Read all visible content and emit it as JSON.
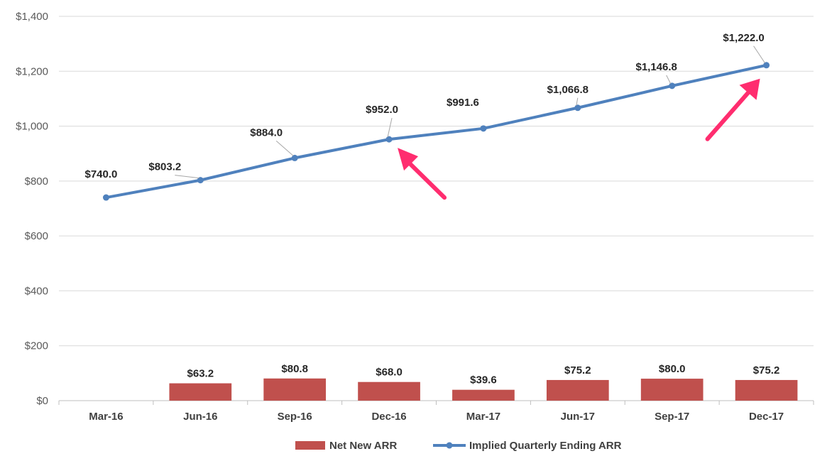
{
  "chart_data": {
    "type": "bar",
    "categories": [
      "Mar-16",
      "Jun-16",
      "Sep-16",
      "Dec-16",
      "Mar-17",
      "Jun-17",
      "Sep-17",
      "Dec-17"
    ],
    "series": [
      {
        "name": "Net New ARR",
        "type": "bar",
        "color": "#C0504D",
        "values": [
          null,
          63.2,
          80.8,
          68.0,
          39.6,
          75.2,
          80.0,
          75.2
        ],
        "labels": [
          "",
          "$63.2",
          "$80.8",
          "$68.0",
          "$39.6",
          "$75.2",
          "$80.0",
          "$75.2"
        ]
      },
      {
        "name": "Implied Quarterly Ending ARR",
        "type": "line",
        "color": "#4F81BD",
        "values": [
          740.0,
          803.2,
          884.0,
          952.0,
          991.6,
          1066.8,
          1146.8,
          1222.0
        ],
        "labels": [
          "$740.0",
          "$803.2",
          "$884.0",
          "$952.0",
          "$991.6",
          "$1,066.8",
          "$1,146.8",
          "$1,222.0"
        ]
      }
    ],
    "yticks": [
      0,
      200,
      400,
      600,
      800,
      1000,
      1200,
      1400
    ],
    "ytick_labels": [
      "$0",
      "$200",
      "$400",
      "$600",
      "$800",
      "$1,000",
      "$1,200",
      "$1,400"
    ],
    "ylim": [
      0,
      1400
    ],
    "grid": true,
    "legend": "bottom",
    "annotations": [
      {
        "kind": "arrow",
        "color": "#FF2D6F",
        "points_to": "Dec-16"
      },
      {
        "kind": "arrow",
        "color": "#FF2D6F",
        "points_to": "Dec-17"
      }
    ]
  }
}
